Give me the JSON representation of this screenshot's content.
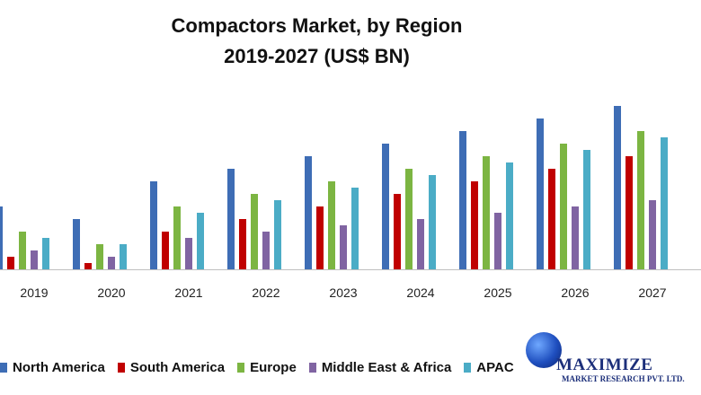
{
  "chart_data": {
    "type": "bar",
    "title_line1": "Compactors  Market,  by Region",
    "title_line2": "2019-2027 (US$ BN)",
    "categories": [
      "2019",
      "2020",
      "2021",
      "2022",
      "2023",
      "2024",
      "2025",
      "2026",
      "2027"
    ],
    "series": [
      {
        "name": "North America",
        "color": "#3e6db5",
        "values": [
          5,
          4,
          7,
          8,
          9,
          10,
          11,
          12,
          13
        ]
      },
      {
        "name": "South America",
        "color": "#c00000",
        "values": [
          1,
          0.5,
          3,
          4,
          5,
          6,
          7,
          8,
          9
        ]
      },
      {
        "name": "Europe",
        "color": "#7cb542",
        "values": [
          3,
          2,
          5,
          6,
          7,
          8,
          9,
          10,
          11
        ]
      },
      {
        "name": "Middle East & Africa",
        "color": "#8064a2",
        "values": [
          1.5,
          1,
          2.5,
          3,
          3.5,
          4,
          4.5,
          5,
          5.5
        ]
      },
      {
        "name": "APAC",
        "color": "#4bacc6",
        "values": [
          2.5,
          2,
          4.5,
          5.5,
          6.5,
          7.5,
          8.5,
          9.5,
          10.5
        ]
      }
    ],
    "ylim": [
      0,
      14
    ],
    "grid": false,
    "legend_position": "bottom"
  },
  "logo": {
    "name": "MAXIMIZE",
    "sub": "MARKET RESEARCH PVT. LTD."
  }
}
